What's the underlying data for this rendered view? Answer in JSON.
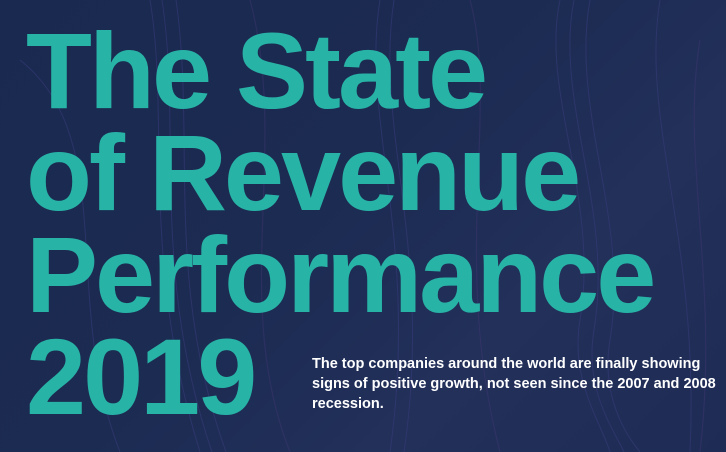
{
  "title": {
    "line1": "The State",
    "line2": "of Revenue",
    "line3": "Performance",
    "year": "2019"
  },
  "description": "The top companies around the world are finally showing signs of positive growth, not seen since the 2007 and 2008 recession.",
  "colors": {
    "background": "#1b2a4f",
    "title": "#27b3a6",
    "description": "#ffffff",
    "texture": "#3a3a7a"
  }
}
